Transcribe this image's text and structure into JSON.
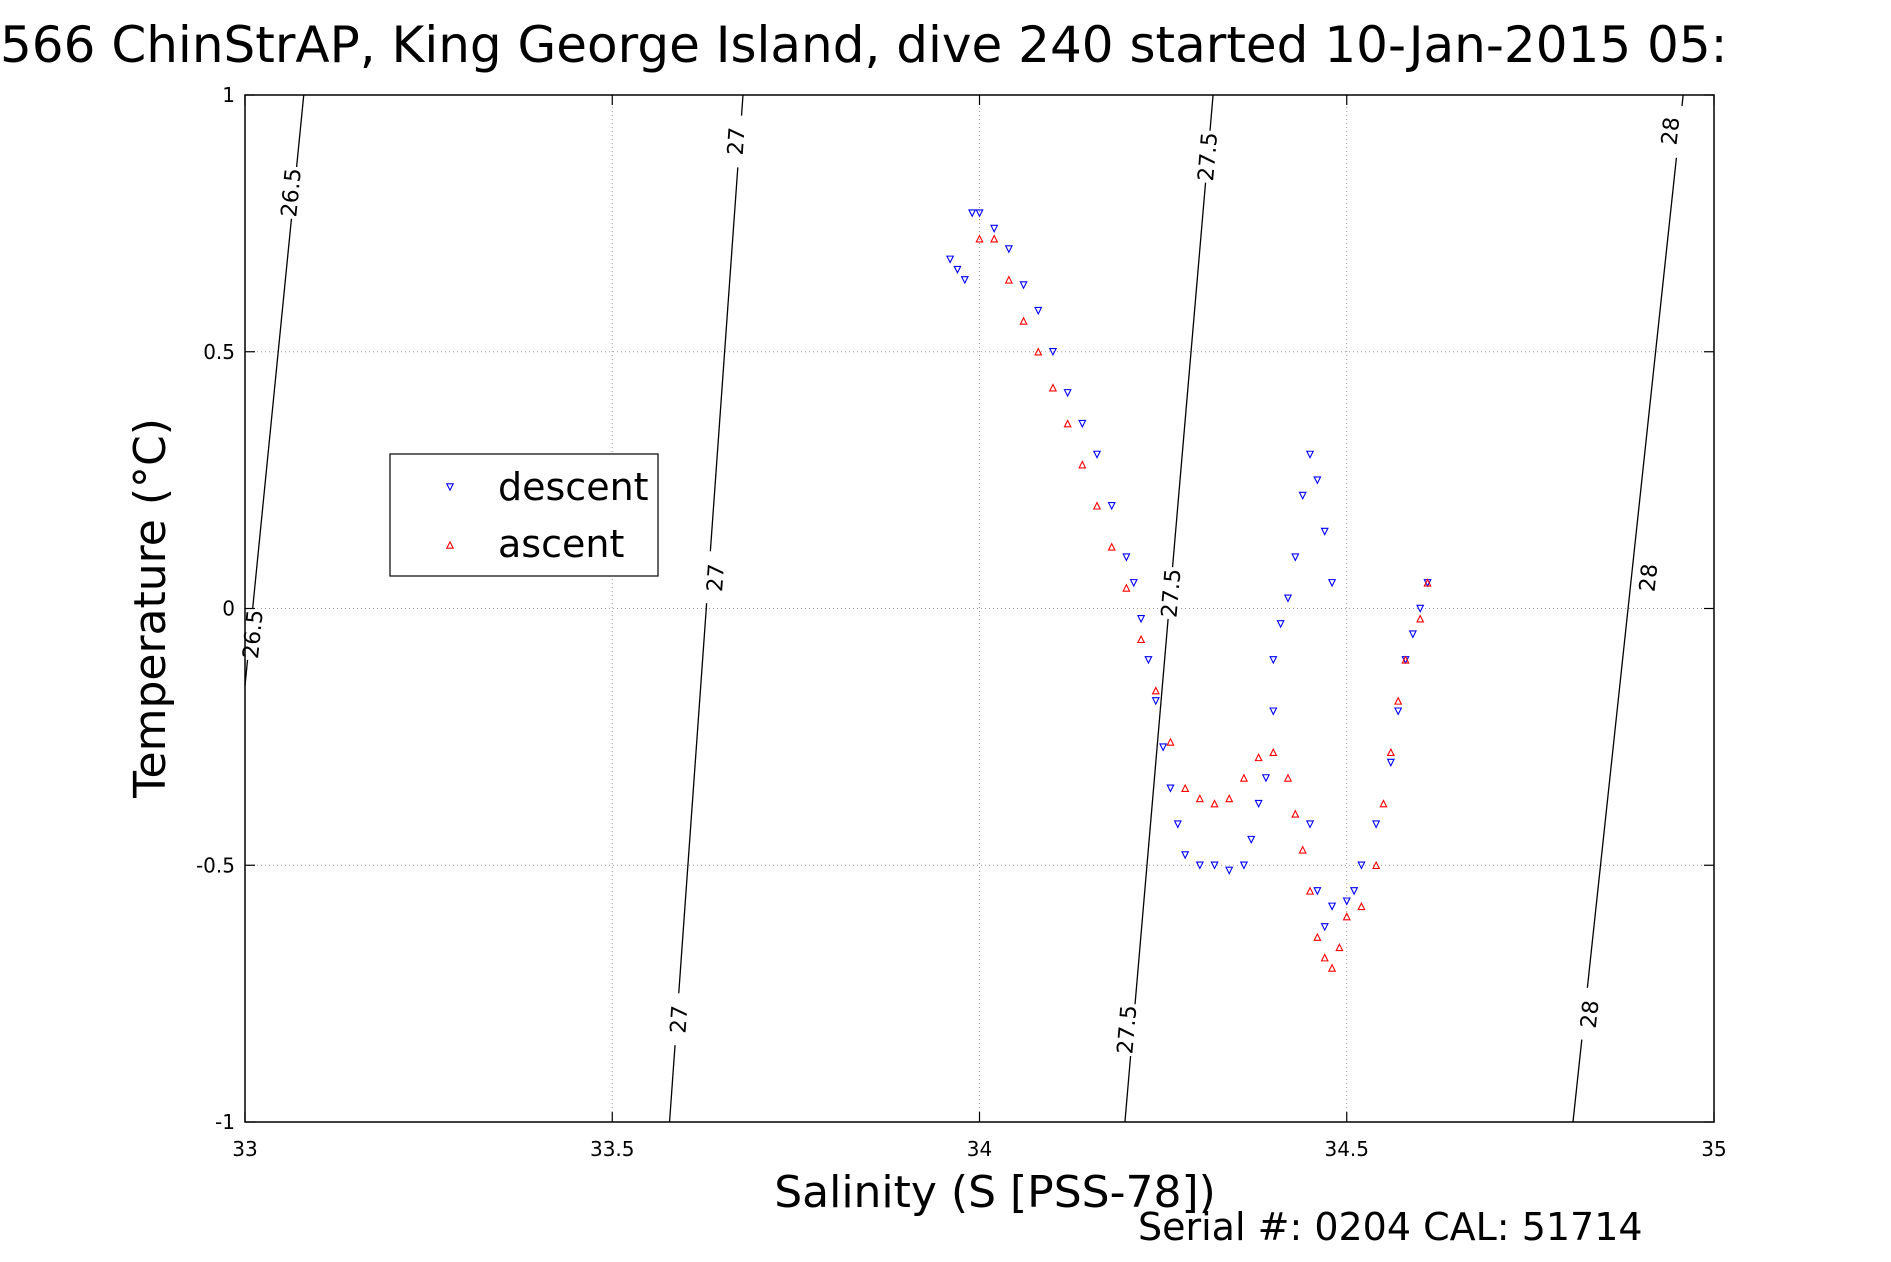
{
  "chart_data": {
    "type": "scatter",
    "title": "566 ChinStrAP, King George Island, dive 240 started 10-Jan-2015 05:",
    "xlabel": "Salinity (S [PSS-78])",
    "ylabel": "Temperature (°C)",
    "xlim": [
      33,
      35
    ],
    "ylim": [
      -1,
      1
    ],
    "xticks": [
      33,
      33.5,
      34,
      34.5,
      35
    ],
    "yticks": [
      -1,
      -0.5,
      0,
      0.5,
      1
    ],
    "xtick_labels": [
      "33",
      "33.5",
      "34",
      "34.5",
      "35"
    ],
    "ytick_labels": [
      "-1",
      "-0.5",
      "0",
      "0.5",
      "1"
    ],
    "grid": true,
    "legend_position": "left",
    "series": [
      {
        "name": "descent",
        "color": "#0000ff",
        "marker": "triangle-down",
        "points": [
          [
            33.96,
            0.68
          ],
          [
            33.97,
            0.66
          ],
          [
            33.98,
            0.64
          ],
          [
            33.99,
            0.77
          ],
          [
            34.0,
            0.77
          ],
          [
            34.02,
            0.74
          ],
          [
            34.04,
            0.7
          ],
          [
            34.06,
            0.63
          ],
          [
            34.08,
            0.58
          ],
          [
            34.1,
            0.5
          ],
          [
            34.12,
            0.42
          ],
          [
            34.14,
            0.36
          ],
          [
            34.16,
            0.3
          ],
          [
            34.18,
            0.2
          ],
          [
            34.2,
            0.1
          ],
          [
            34.21,
            0.05
          ],
          [
            34.22,
            -0.02
          ],
          [
            34.23,
            -0.1
          ],
          [
            34.24,
            -0.18
          ],
          [
            34.25,
            -0.27
          ],
          [
            34.26,
            -0.35
          ],
          [
            34.27,
            -0.42
          ],
          [
            34.28,
            -0.48
          ],
          [
            34.3,
            -0.5
          ],
          [
            34.32,
            -0.5
          ],
          [
            34.34,
            -0.51
          ],
          [
            34.36,
            -0.5
          ],
          [
            34.37,
            -0.45
          ],
          [
            34.38,
            -0.38
          ],
          [
            34.39,
            -0.33
          ],
          [
            34.4,
            -0.2
          ],
          [
            34.4,
            -0.1
          ],
          [
            34.41,
            -0.03
          ],
          [
            34.42,
            0.02
          ],
          [
            34.43,
            0.1
          ],
          [
            34.44,
            0.22
          ],
          [
            34.45,
            0.3
          ],
          [
            34.46,
            0.25
          ],
          [
            34.47,
            0.15
          ],
          [
            34.48,
            0.05
          ],
          [
            34.45,
            -0.42
          ],
          [
            34.46,
            -0.55
          ],
          [
            34.47,
            -0.62
          ],
          [
            34.48,
            -0.58
          ],
          [
            34.5,
            -0.57
          ],
          [
            34.51,
            -0.55
          ],
          [
            34.52,
            -0.5
          ],
          [
            34.54,
            -0.42
          ],
          [
            34.56,
            -0.3
          ],
          [
            34.57,
            -0.2
          ],
          [
            34.58,
            -0.1
          ],
          [
            34.59,
            -0.05
          ],
          [
            34.6,
            0.0
          ],
          [
            34.61,
            0.05
          ]
        ]
      },
      {
        "name": "ascent",
        "color": "#ff0000",
        "marker": "triangle-up",
        "points": [
          [
            34.0,
            0.72
          ],
          [
            34.02,
            0.72
          ],
          [
            34.04,
            0.64
          ],
          [
            34.06,
            0.56
          ],
          [
            34.08,
            0.5
          ],
          [
            34.1,
            0.43
          ],
          [
            34.12,
            0.36
          ],
          [
            34.14,
            0.28
          ],
          [
            34.16,
            0.2
          ],
          [
            34.18,
            0.12
          ],
          [
            34.2,
            0.04
          ],
          [
            34.22,
            -0.06
          ],
          [
            34.24,
            -0.16
          ],
          [
            34.26,
            -0.26
          ],
          [
            34.28,
            -0.35
          ],
          [
            34.3,
            -0.37
          ],
          [
            34.32,
            -0.38
          ],
          [
            34.34,
            -0.37
          ],
          [
            34.36,
            -0.33
          ],
          [
            34.38,
            -0.29
          ],
          [
            34.4,
            -0.28
          ],
          [
            34.42,
            -0.33
          ],
          [
            34.43,
            -0.4
          ],
          [
            34.44,
            -0.47
          ],
          [
            34.45,
            -0.55
          ],
          [
            34.46,
            -0.64
          ],
          [
            34.47,
            -0.68
          ],
          [
            34.48,
            -0.7
          ],
          [
            34.49,
            -0.66
          ],
          [
            34.5,
            -0.6
          ],
          [
            34.52,
            -0.58
          ],
          [
            34.54,
            -0.5
          ],
          [
            34.55,
            -0.38
          ],
          [
            34.56,
            -0.28
          ],
          [
            34.57,
            -0.18
          ],
          [
            34.58,
            -0.1
          ],
          [
            34.6,
            -0.02
          ],
          [
            34.61,
            0.05
          ]
        ]
      }
    ],
    "density_contours": [
      {
        "label": "26.5",
        "points": [
          [
            33.0,
            -0.15
          ],
          [
            33.08,
            1.0
          ]
        ],
        "label_positions": [
          [
            33.062,
            0.81
          ],
          [
            33.01,
            -0.05
          ]
        ]
      },
      {
        "label": "27",
        "points": [
          [
            33.578,
            -1.0
          ],
          [
            33.678,
            1.0
          ]
        ],
        "label_positions": [
          [
            33.668,
            0.91
          ],
          [
            33.64,
            0.06
          ],
          [
            33.59,
            -0.8
          ]
        ]
      },
      {
        "label": "27.5",
        "points": [
          [
            34.198,
            -1.0
          ],
          [
            34.318,
            1.0
          ]
        ],
        "label_positions": [
          [
            34.31,
            0.88
          ],
          [
            34.26,
            0.03
          ],
          [
            34.2,
            -0.82
          ]
        ]
      },
      {
        "label": "28",
        "points": [
          [
            34.808,
            -1.0
          ],
          [
            34.958,
            1.0
          ]
        ],
        "label_positions": [
          [
            34.94,
            0.93
          ],
          [
            34.91,
            0.06
          ],
          [
            34.83,
            -0.79
          ]
        ]
      }
    ]
  },
  "footer": {
    "serial_text": "Serial #: 0204  CAL: 51714"
  }
}
